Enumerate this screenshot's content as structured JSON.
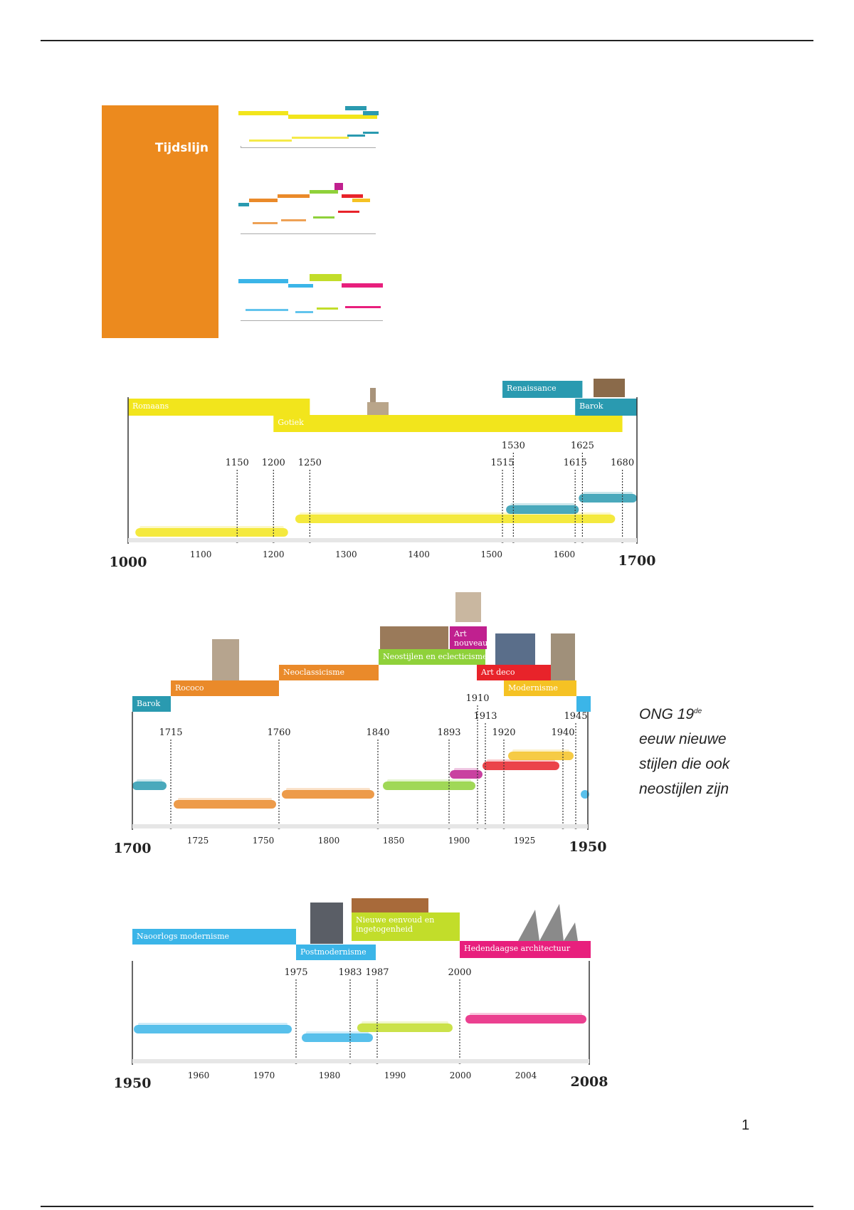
{
  "page": {
    "number": "1"
  },
  "cover": {
    "title": "Tijdslijn",
    "color": "#ec8a1e"
  },
  "note": {
    "line1": "ONG 19",
    "sup": "de",
    "line2": "eeuw nieuwe",
    "line3": "stijlen die ook",
    "line4": "neostijlen zijn"
  },
  "timelines": [
    {
      "id": "t1",
      "start": 1000,
      "end": 1700,
      "start_label": "1000",
      "end_label": "1700",
      "axis_ticks": [
        "1100",
        "1200",
        "1300",
        "1400",
        "1500",
        "1600"
      ],
      "axis_tick_years": [
        1100,
        1200,
        1300,
        1400,
        1500,
        1600
      ],
      "markers": [
        {
          "label": "1150",
          "year": 1150,
          "row": 1
        },
        {
          "label": "1200",
          "year": 1200,
          "row": 1
        },
        {
          "label": "1250",
          "year": 1250,
          "row": 1
        },
        {
          "label": "1515",
          "year": 1515,
          "row": 1
        },
        {
          "label": "1530",
          "year": 1530,
          "row": 0
        },
        {
          "label": "1615",
          "year": 1615,
          "row": 1
        },
        {
          "label": "1625",
          "year": 1625,
          "row": 0
        },
        {
          "label": "1680",
          "year": 1680,
          "row": 1
        }
      ],
      "styles": [
        {
          "name": "Romaans",
          "from": 1000,
          "to": 1250,
          "color": "#f2e51c",
          "level": 2,
          "track": 1
        },
        {
          "name": "Gotiek",
          "from": 1200,
          "to": 1680,
          "color": "#f2e51c",
          "level": 1,
          "track": 0
        },
        {
          "name": "Renaissance",
          "from": 1515,
          "to": 1625,
          "color": "#2a9ab0",
          "level": 3,
          "track": 0
        },
        {
          "name": "Barok",
          "from": 1615,
          "to": 1700,
          "color": "#2a9ab0",
          "level": 2,
          "track": 1
        }
      ]
    },
    {
      "id": "t2",
      "start": 1700,
      "end": 1950,
      "start_label": "1700",
      "end_label": "1950",
      "axis_ticks": [
        "1725",
        "1750",
        "1800",
        "1850",
        "1900",
        "1925"
      ],
      "markers": [
        {
          "label": "1715",
          "row": 2
        },
        {
          "label": "1760",
          "row": 2
        },
        {
          "label": "1840",
          "row": 2
        },
        {
          "label": "1893",
          "row": 2
        },
        {
          "label": "1910",
          "row": 0
        },
        {
          "label": "1913",
          "row": 1
        },
        {
          "label": "1920",
          "row": 2
        },
        {
          "label": "1940",
          "row": 2
        },
        {
          "label": "1945",
          "row": 1
        }
      ],
      "styles": [
        {
          "name": "Barok",
          "color": "#2a9ab0"
        },
        {
          "name": "Rococo",
          "color": "#ea8a2a"
        },
        {
          "name": "Neoclassicisme",
          "color": "#ea8a2a"
        },
        {
          "name": "Neostijlen en eclecticisme",
          "color": "#8fd13a"
        },
        {
          "name": "Art nouveau",
          "color": "#c0208f"
        },
        {
          "name": "Art deco",
          "color": "#e8232a"
        },
        {
          "name": "Modernisme",
          "color": "#f5c224"
        },
        {
          "name": "",
          "color": "#3bb5e8"
        }
      ]
    },
    {
      "id": "t3",
      "start": 1950,
      "end": 2008,
      "start_label": "1950",
      "end_label": "2008",
      "axis_ticks": [
        "1960",
        "1970",
        "1980",
        "1990",
        "2000",
        "2004"
      ],
      "markers": [
        {
          "label": "1975"
        },
        {
          "label": "1983"
        },
        {
          "label": "1987"
        },
        {
          "label": "2000"
        }
      ],
      "styles": [
        {
          "name": "Naoorlogs modernisme",
          "color": "#3bb5e8"
        },
        {
          "name": "Postmodernisme",
          "color": "#3bb5e8"
        },
        {
          "name": "Nieuwe eenvoud en ingetogenheid",
          "color": "#c2dd2a"
        },
        {
          "name": "Hedendaagse architectuur",
          "color": "#e81f7d"
        }
      ]
    }
  ]
}
